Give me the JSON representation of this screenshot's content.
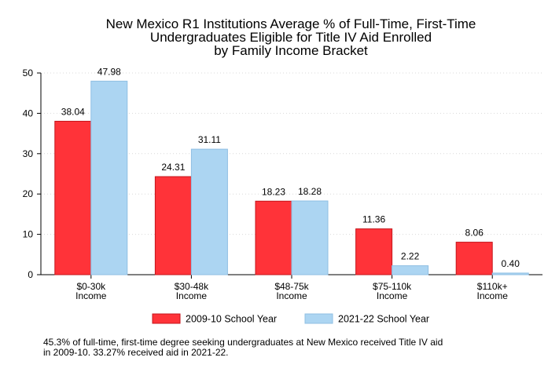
{
  "chart_data": {
    "type": "bar",
    "title_lines": [
      "New Mexico R1 Institutions Average % of Full-Time, First-Time",
      "Undergraduates Eligible for Title IV Aid Enrolled",
      "by Family Income Bracket"
    ],
    "categories": [
      [
        "$0-30k",
        "Income"
      ],
      [
        "$30-48k",
        "Income"
      ],
      [
        "$48-75k",
        "Income"
      ],
      [
        "$75-110k",
        "Income"
      ],
      [
        "$110k+",
        "Income"
      ]
    ],
    "series": [
      {
        "name": "2009-10 School Year",
        "color": "#ff3339",
        "values": [
          38.04,
          24.31,
          18.23,
          11.36,
          8.06
        ],
        "labels": [
          "38.04",
          "24.31",
          "18.23",
          "11.36",
          "8.06"
        ]
      },
      {
        "name": "2021-22 School Year",
        "color": "#acd5f2",
        "values": [
          47.98,
          31.11,
          18.28,
          2.22,
          0.4
        ],
        "labels": [
          "47.98",
          "31.11",
          "18.28",
          "2.22",
          "0.40"
        ]
      }
    ],
    "y_ticks": [
      "0",
      "10",
      "20",
      "30",
      "40",
      "50"
    ],
    "ylim": [
      0,
      50
    ],
    "grid": "horizontal dotted",
    "legend_position": "bottom"
  },
  "footnote_lines": [
    "45.3% of full-time, first-time degree seeking undergraduates at New Mexico received Title IV aid",
    "in 2009-10. 33.27% received aid in 2021-22."
  ]
}
